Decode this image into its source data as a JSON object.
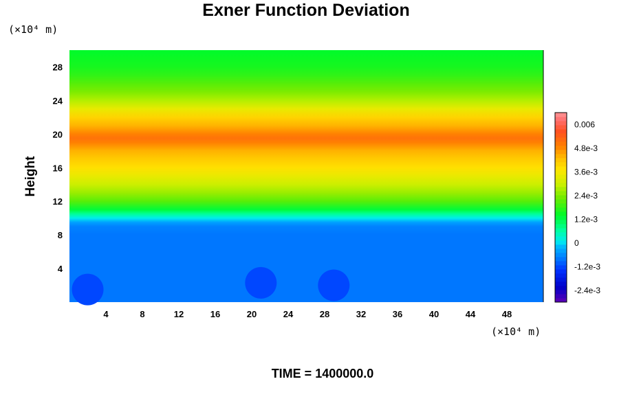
{
  "chart_data": {
    "type": "heatmap",
    "title": "Exner Function Deviation",
    "xlabel": "",
    "ylabel": "Height",
    "x_unit": "(×10⁴ m)",
    "y_unit": "(×10⁴ m)",
    "xlim": [
      0,
      52
    ],
    "ylim": [
      0,
      30
    ],
    "x_ticks": [
      "4",
      "8",
      "12",
      "16",
      "20",
      "24",
      "28",
      "32",
      "36",
      "40",
      "44",
      "48"
    ],
    "y_ticks": [
      "4",
      "8",
      "12",
      "16",
      "20",
      "24",
      "28"
    ],
    "colorbar": {
      "range": [
        -0.003,
        0.0066
      ],
      "labels": [
        {
          "value": 0.006,
          "text": "0.006"
        },
        {
          "value": 0.0048,
          "text": "4.8e-3"
        },
        {
          "value": 0.0036,
          "text": "3.6e-3"
        },
        {
          "value": 0.0024,
          "text": "2.4e-3"
        },
        {
          "value": 0.0012,
          "text": "1.2e-3"
        },
        {
          "value": 0,
          "text": "0"
        },
        {
          "value": -0.0012,
          "text": "-1.2e-3"
        },
        {
          "value": -0.0024,
          "text": "-2.4e-3"
        }
      ]
    },
    "profile": {
      "height": [
        0,
        8,
        9,
        9.5,
        10,
        10.5,
        11,
        12,
        13,
        14,
        15,
        16,
        17,
        18,
        19,
        19.5,
        20,
        21,
        22,
        23,
        24,
        25,
        26,
        27,
        28,
        29,
        30
      ],
      "value": [
        -0.0008,
        -0.0008,
        -0.0007,
        -0.0004,
        0.0001,
        0.0007,
        0.0013,
        0.0021,
        0.0026,
        0.003,
        0.0034,
        0.0038,
        0.0041,
        0.0044,
        0.0049,
        0.0051,
        0.0049,
        0.0044,
        0.004,
        0.0034,
        0.0028,
        0.0024,
        0.0021,
        0.0018,
        0.0016,
        0.0015,
        0.0014
      ]
    },
    "cells": [
      {
        "x": 2,
        "y": 1.5,
        "value": -0.0012
      },
      {
        "x": 21,
        "y": 2.3,
        "value": -0.0012
      },
      {
        "x": 29,
        "y": 2,
        "value": -0.0012
      }
    ]
  },
  "footer": {
    "time_label": "TIME = 1400000.0"
  }
}
